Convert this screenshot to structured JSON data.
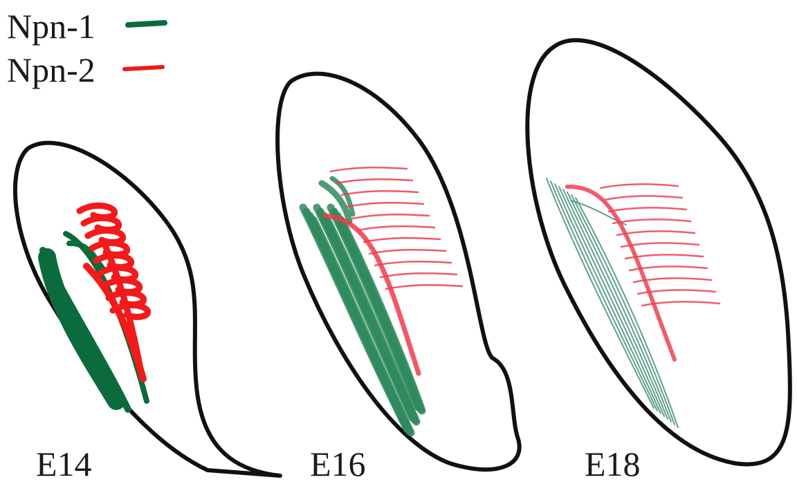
{
  "legend": [
    {
      "label": "Npn-1",
      "color": "#0b6b3c"
    },
    {
      "label": "Npn-2",
      "color": "#f21a1a"
    }
  ],
  "panels": [
    {
      "label": "E14"
    },
    {
      "label": "E16"
    },
    {
      "label": "E18"
    }
  ]
}
